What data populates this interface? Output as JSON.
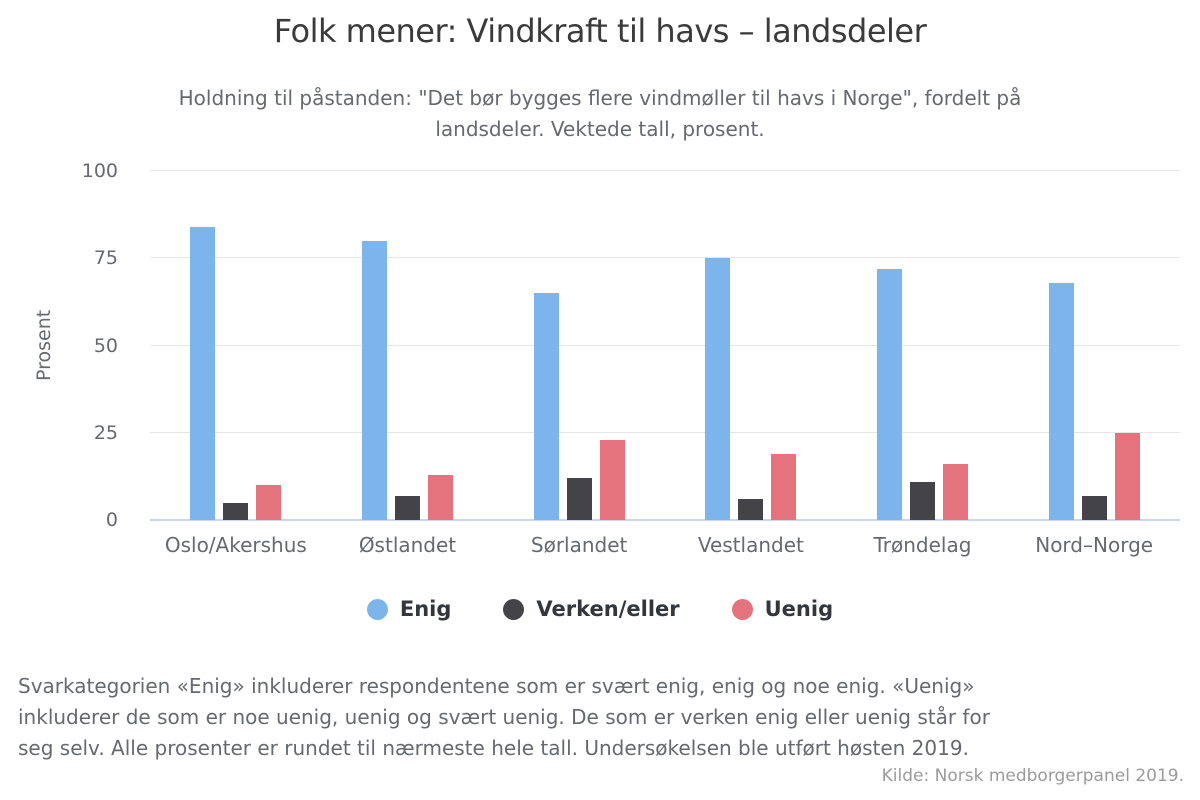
{
  "chart_data": {
    "type": "bar",
    "title": "Folk mener: Vindkraft til havs – landsdeler",
    "subtitle_lines": [
      "Holdning til påstanden: \"Det bør bygges flere vindmøller til havs i Norge\", fordelt på",
      "landsdeler. Vektede tall, prosent."
    ],
    "ylabel": "Prosent",
    "ylim": [
      0,
      100
    ],
    "yticks": [
      0,
      25,
      50,
      75,
      100
    ],
    "grid": "horizontal",
    "legend_position": "bottom",
    "categories": [
      "Oslo/Akershus",
      "Østlandet",
      "Sørlandet",
      "Vestlandet",
      "Trøndelag",
      "Nord–Norge"
    ],
    "series": [
      {
        "name": "Enig",
        "color": "#7cb5ec",
        "values": [
          84,
          80,
          65,
          75,
          72,
          68
        ]
      },
      {
        "name": "Verken/eller",
        "color": "#434348",
        "values": [
          5,
          7,
          12,
          6,
          11,
          7
        ]
      },
      {
        "name": "Uenig",
        "color": "#e4737e",
        "values": [
          10,
          13,
          23,
          19,
          16,
          25
        ]
      }
    ],
    "axis_colors": {
      "gridline": "#e6e6e6",
      "baseline": "#ccd6eb"
    }
  },
  "footer": {
    "note_lines": [
      "Svarkategorien «Enig» inkluderer respondentene som er svært enig, enig og noe enig. «Uenig»",
      "inkluderer de som er noe uenig, uenig og svært uenig. De som er verken enig eller uenig står for",
      "seg selv. Alle prosenter er rundet til nærmeste hele tall. Undersøkelsen ble utført høsten 2019."
    ],
    "source": "Kilde: Norsk medborgerpanel 2019."
  }
}
